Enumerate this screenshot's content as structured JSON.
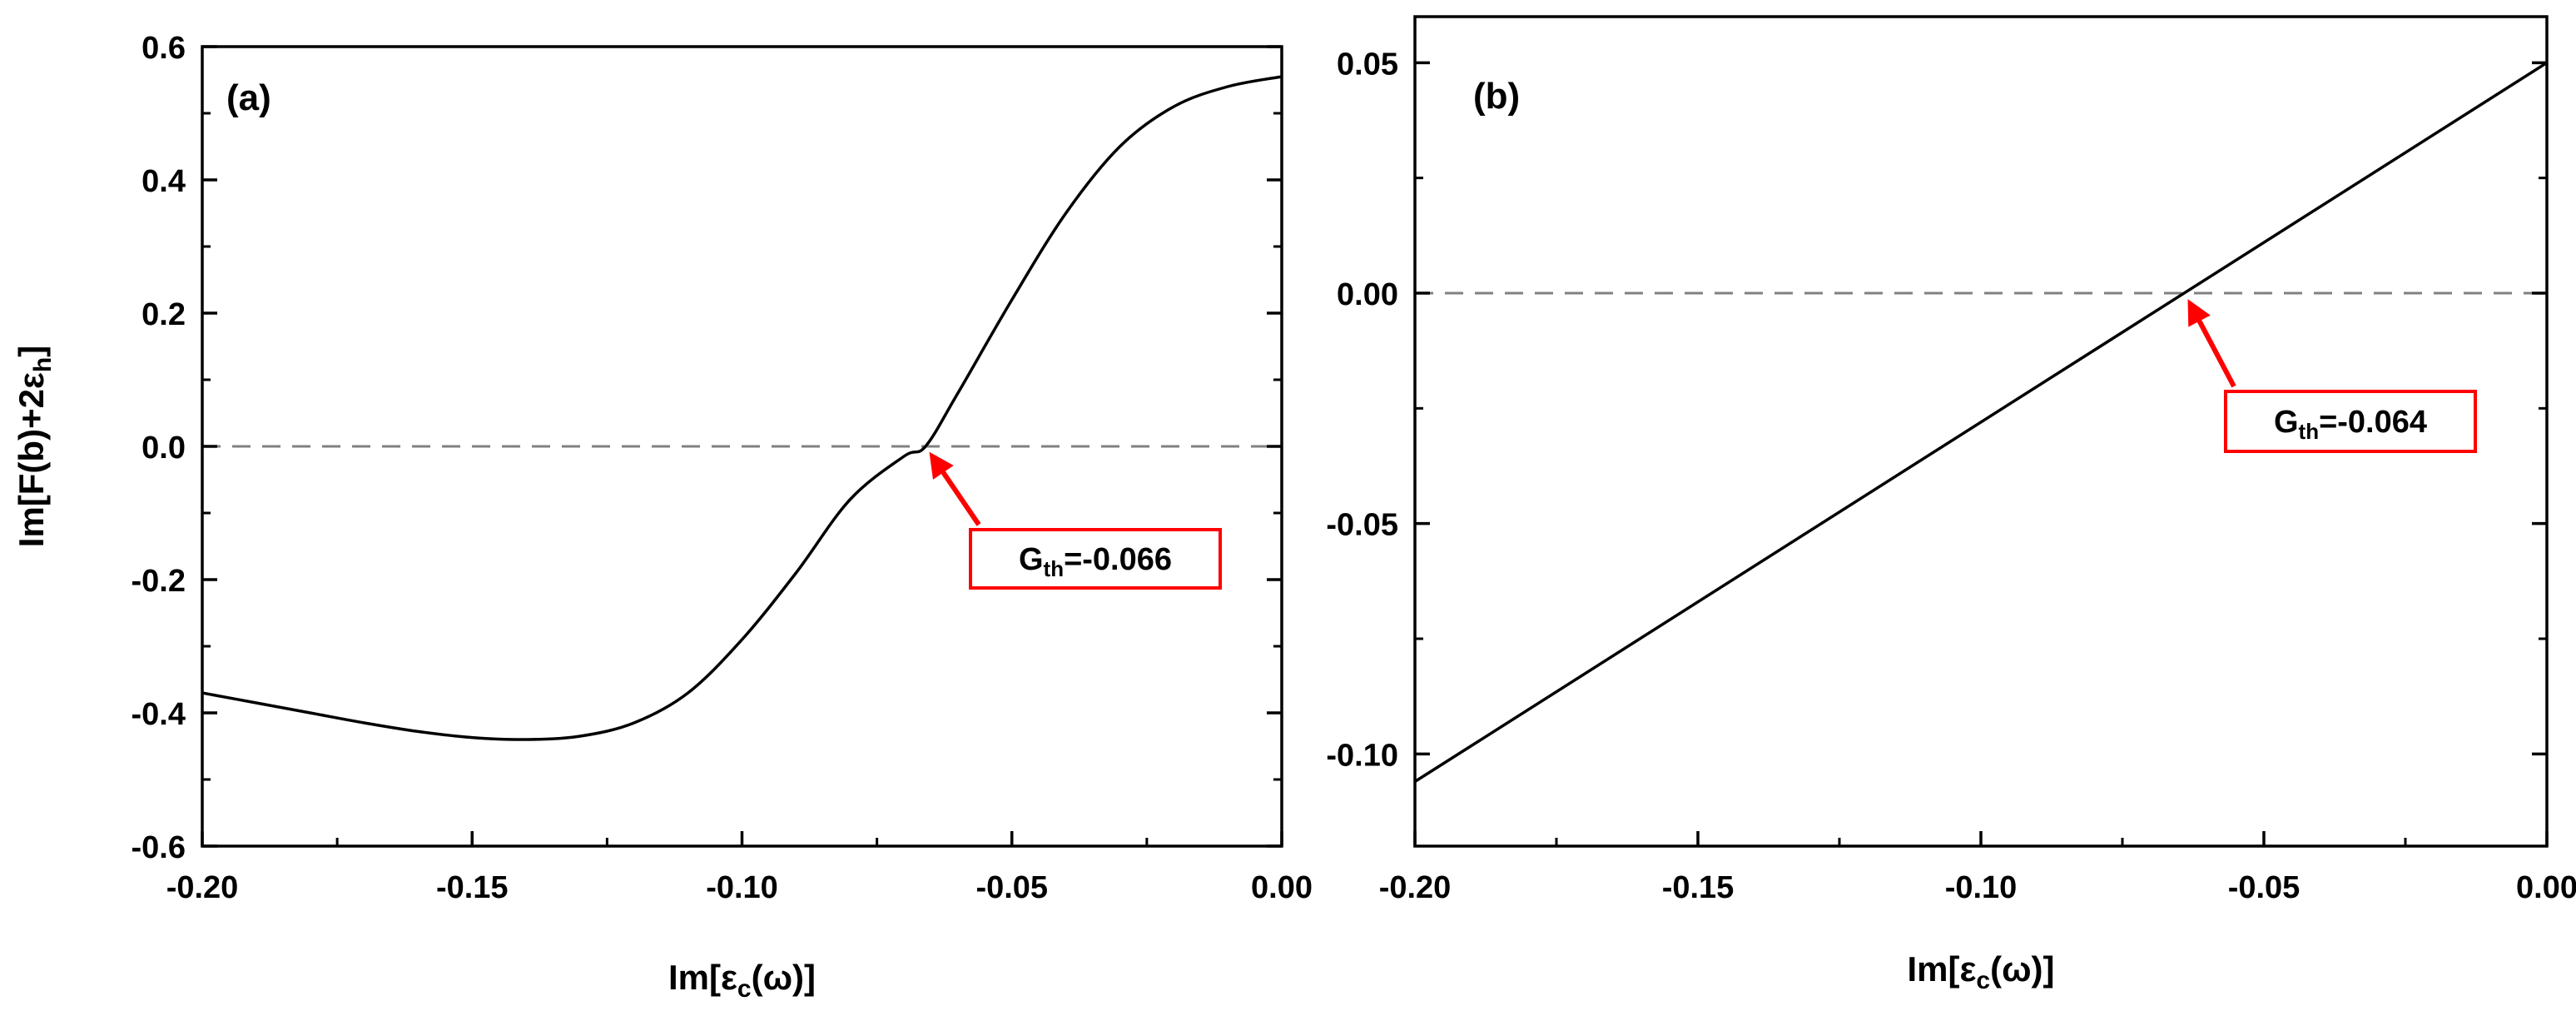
{
  "chart_data": [
    {
      "type": "line",
      "panel_label": "(a)",
      "xlim": [
        -0.2,
        0.0
      ],
      "ylim": [
        -0.6,
        0.6
      ],
      "xticks": [
        -0.2,
        -0.15,
        -0.1,
        -0.05,
        0.0
      ],
      "xtick_labels": [
        "-0.20",
        "-0.15",
        "-0.10",
        "-0.05",
        "0.00"
      ],
      "yticks": [
        -0.6,
        -0.4,
        -0.2,
        0.0,
        0.2,
        0.4,
        0.6
      ],
      "ytick_labels": [
        "-0.6",
        "-0.4",
        "-0.2",
        "0.0",
        "0.2",
        "0.4",
        "0.6"
      ],
      "xlabel_main": "Im[ε",
      "xlabel_sub": "c",
      "xlabel_tail": "(ω)]",
      "ylabel_main": "Im[F(b)+2ε",
      "ylabel_sub": "h",
      "ylabel_tail": "]",
      "grid": false,
      "reference_line": {
        "y": 0.0,
        "style": "dashed",
        "color": "#808080"
      },
      "series": [
        {
          "color": "#000000",
          "x": [
            -0.2,
            -0.19,
            -0.18,
            -0.17,
            -0.16,
            -0.15,
            -0.14,
            -0.13,
            -0.12,
            -0.11,
            -0.1,
            -0.09,
            -0.08,
            -0.07,
            -0.066,
            -0.06,
            -0.05,
            -0.04,
            -0.03,
            -0.02,
            -0.01,
            0.0
          ],
          "y": [
            -0.37,
            -0.385,
            -0.4,
            -0.415,
            -0.428,
            -0.437,
            -0.44,
            -0.435,
            -0.415,
            -0.37,
            -0.29,
            -0.19,
            -0.08,
            -0.015,
            0.0,
            0.08,
            0.22,
            0.35,
            0.45,
            0.51,
            0.54,
            0.555
          ]
        }
      ],
      "annotation": {
        "label_main": "G",
        "label_sub": "th",
        "label_value": "=-0.066",
        "point": [
          -0.066,
          0.0
        ],
        "box_color": "#ff0000",
        "arrow_color": "#ff0000"
      }
    },
    {
      "type": "line",
      "panel_label": "(b)",
      "xlim": [
        -0.2,
        0.0
      ],
      "ylim": [
        -0.12,
        0.06
      ],
      "xticks": [
        -0.2,
        -0.15,
        -0.1,
        -0.05,
        0.0
      ],
      "xtick_labels": [
        "-0.20",
        "-0.15",
        "-0.10",
        "-0.05",
        "0.00"
      ],
      "yticks": [
        -0.1,
        -0.05,
        0.0,
        0.05
      ],
      "ytick_labels": [
        "-0.10",
        "-0.05",
        "0.00",
        "0.05"
      ],
      "xlabel_main": "Im[ε",
      "xlabel_sub": "c",
      "xlabel_tail": "(ω)]",
      "grid": false,
      "reference_line": {
        "y": 0.0,
        "style": "dashed",
        "color": "#808080"
      },
      "series": [
        {
          "color": "#000000",
          "x": [
            -0.2,
            0.0
          ],
          "y": [
            -0.106,
            0.05
          ]
        }
      ],
      "annotation": {
        "label_main": "G",
        "label_sub": "th",
        "label_value": "=-0.064",
        "point": [
          -0.064,
          0.0
        ],
        "box_color": "#ff0000",
        "arrow_color": "#ff0000"
      }
    }
  ]
}
